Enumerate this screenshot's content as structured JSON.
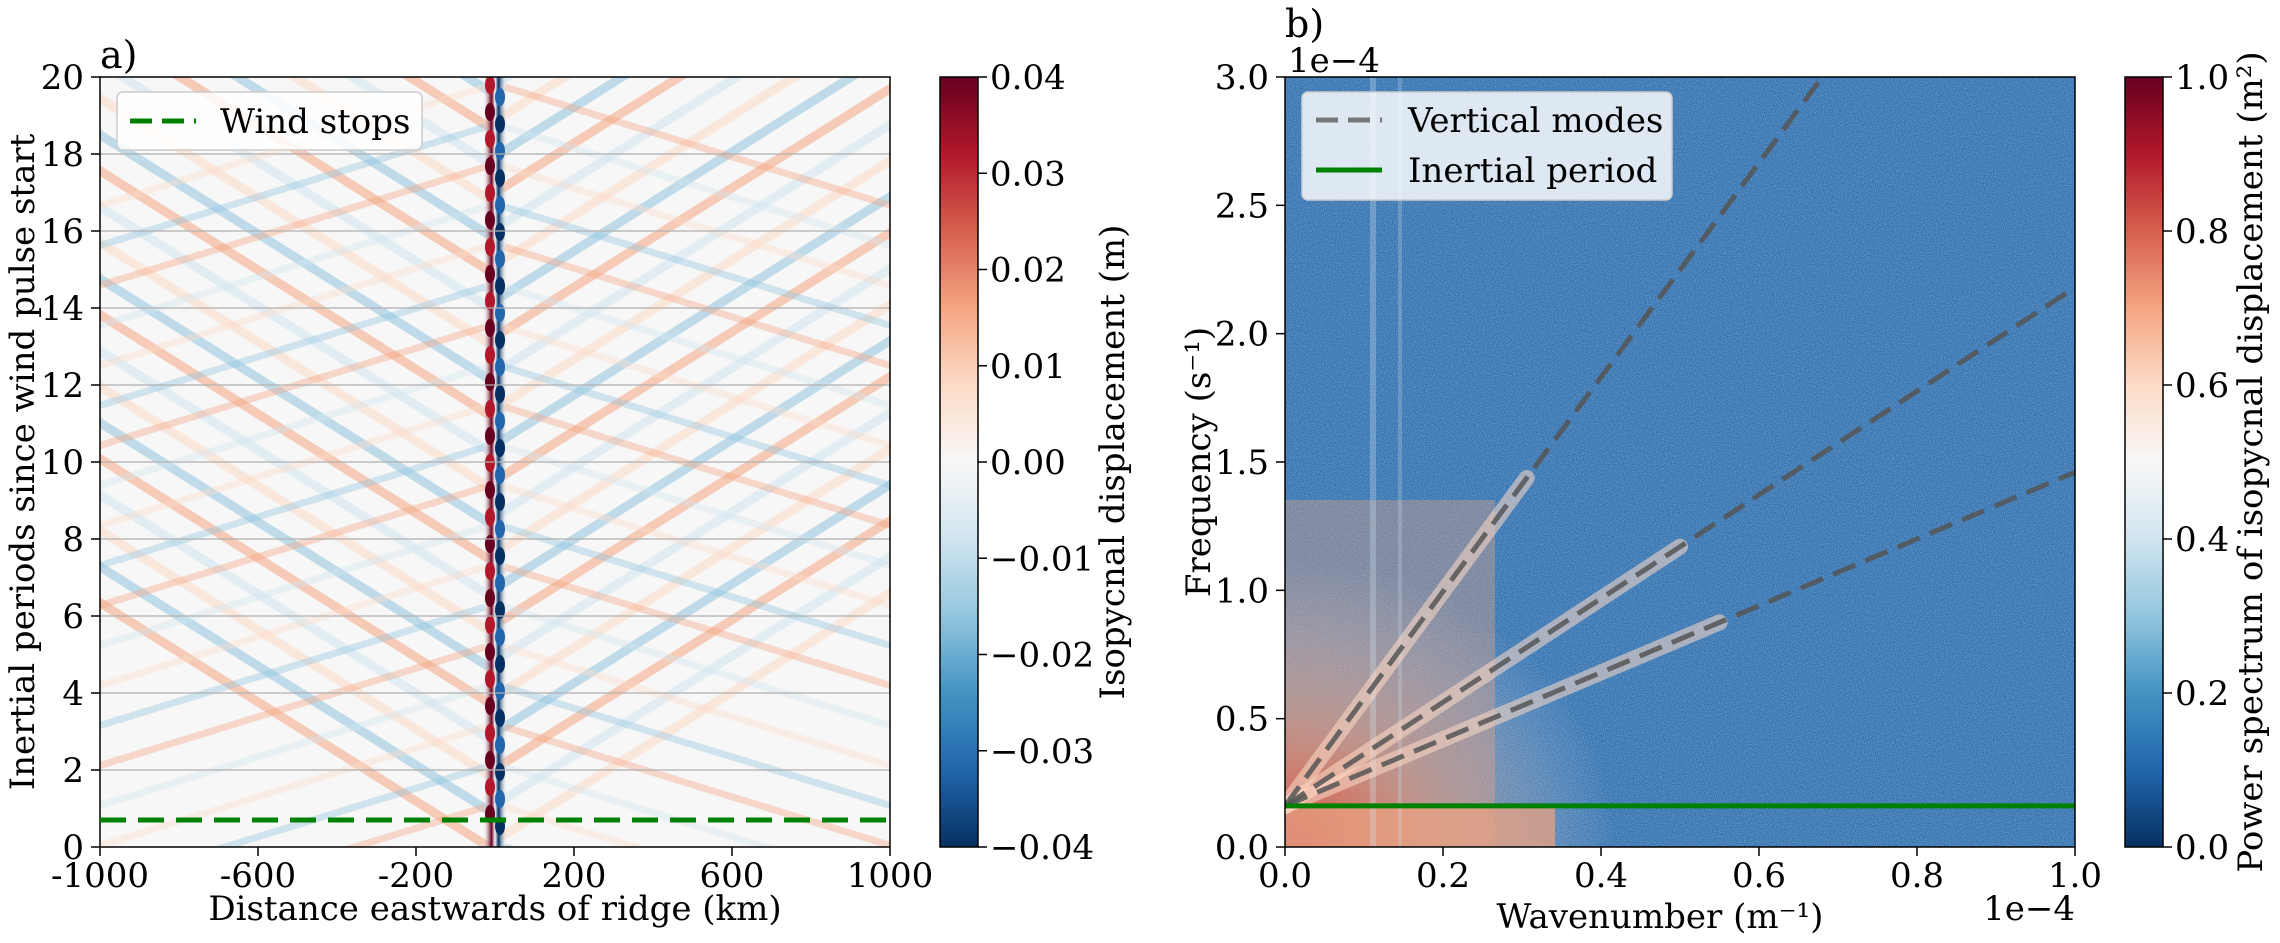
{
  "chart_data": [
    {
      "type": "heatmap",
      "panel_label": "a)",
      "xlabel": "Distance eastwards of ridge (km)",
      "ylabel": "Inertial periods since wind pulse start",
      "xlim": [
        -1000,
        1000
      ],
      "ylim": [
        0,
        20
      ],
      "x_ticks": [
        "-1000",
        "-600",
        "-200",
        "200",
        "600",
        "1000"
      ],
      "x_tick_values": [
        -1000,
        -600,
        -200,
        200,
        600,
        1000
      ],
      "y_ticks": [
        "0",
        "2",
        "4",
        "6",
        "8",
        "10",
        "12",
        "14",
        "16",
        "18",
        "20"
      ],
      "y_tick_values": [
        0,
        2,
        4,
        6,
        8,
        10,
        12,
        14,
        16,
        18,
        20
      ],
      "grid": "horizontal",
      "colormap": "RdBu_r",
      "colorbar": {
        "label": "Isopycnal displacement (m)",
        "vmin": -0.04,
        "vmax": 0.04,
        "ticks": [
          "0.04",
          "0.03",
          "0.02",
          "0.01",
          "0.00",
          "−0.01",
          "−0.02",
          "−0.03",
          "−0.04"
        ],
        "tick_values": [
          0.04,
          0.03,
          0.02,
          0.01,
          0.0,
          -0.01,
          -0.02,
          -0.03,
          -0.04
        ]
      },
      "series": [
        {
          "name": "Wind stops",
          "style": "dashed",
          "color": "#008000",
          "y": 0.7
        }
      ],
      "legend_placement": "top-left"
    },
    {
      "type": "heatmap",
      "panel_label": "b)",
      "xlabel": "Wavenumber (m⁻¹)",
      "ylabel": "Frequency (s⁻¹)",
      "xlim": [
        0,
        0.0001
      ],
      "ylim": [
        0,
        0.0003
      ],
      "x_ticks": [
        "0.0",
        "0.2",
        "0.4",
        "0.6",
        "0.8",
        "1.0"
      ],
      "x_tick_values": [
        0,
        0.2,
        0.4,
        0.6,
        0.8,
        1.0
      ],
      "x_offset": "1e−4",
      "y_ticks": [
        "0.0",
        "0.5",
        "1.0",
        "1.5",
        "2.0",
        "2.5",
        "3.0"
      ],
      "y_tick_values": [
        0,
        0.5,
        1.0,
        1.5,
        2.0,
        2.5,
        3.0
      ],
      "y_offset": "1e−4",
      "colormap": "RdBu_r",
      "colorbar": {
        "label": "Power spectrum of isopycnal displacement (m²)",
        "vmin": 0,
        "vmax": 1,
        "ticks": [
          "1.0",
          "0.8",
          "0.6",
          "0.4",
          "0.2",
          "0.0"
        ],
        "tick_values": [
          1.0,
          0.8,
          0.6,
          0.4,
          0.2,
          0.0
        ]
      },
      "series": [
        {
          "name": "Vertical modes",
          "style": "dashed",
          "color": "#555555",
          "lines": [
            {
              "x": [
                0.0,
                0.68
              ],
              "y": [
                0.16,
                3.0
              ]
            },
            {
              "x": [
                0.0,
                1.0
              ],
              "y": [
                0.16,
                2.18
              ]
            },
            {
              "x": [
                0.0,
                1.0
              ],
              "y": [
                0.16,
                1.46
              ]
            }
          ]
        },
        {
          "name": "Inertial period",
          "style": "solid",
          "color": "#008000",
          "y": 0.16
        }
      ],
      "legend_placement": "top-left"
    }
  ]
}
